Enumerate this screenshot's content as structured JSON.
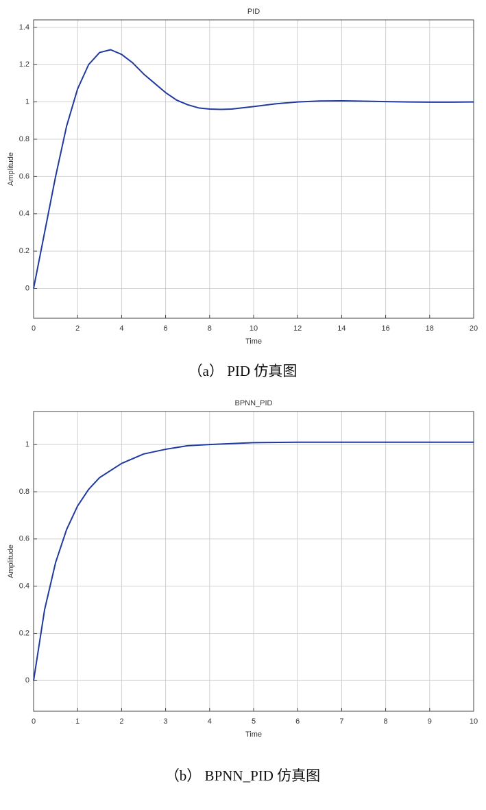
{
  "chart_data": [
    {
      "type": "line",
      "title": "PID",
      "x_label": "Time",
      "y_label": "Amplitude",
      "caption": "（a） PID 仿真图",
      "x": [
        0,
        0.5,
        1,
        1.5,
        2,
        2.5,
        3,
        3.5,
        4,
        4.5,
        5,
        5.5,
        6,
        6.5,
        7,
        7.5,
        8,
        8.5,
        9,
        10,
        11,
        12,
        13,
        14,
        15,
        16,
        17,
        18,
        19,
        20
      ],
      "series": [
        {
          "name": "PID",
          "color": "#1f3a9e",
          "values": [
            0,
            0.3,
            0.6,
            0.87,
            1.07,
            1.2,
            1.265,
            1.28,
            1.255,
            1.21,
            1.15,
            1.1,
            1.05,
            1.01,
            0.985,
            0.968,
            0.962,
            0.96,
            0.962,
            0.975,
            0.99,
            1.0,
            1.005,
            1.006,
            1.004,
            1.002,
            1.0,
            0.999,
            0.999,
            1.0
          ]
        }
      ],
      "xlim": [
        0,
        20
      ],
      "xticks": [
        0,
        2,
        4,
        6,
        8,
        10,
        12,
        14,
        16,
        18,
        20
      ],
      "ylim": [
        -0.16,
        1.44
      ],
      "yticks": [
        0,
        0.2,
        0.4,
        0.6,
        0.8,
        1,
        1.2,
        1.4
      ],
      "grid": true
    },
    {
      "type": "line",
      "title": "BPNN_PID",
      "x_label": "Time",
      "y_label": "Amplitude",
      "caption": "（b） BPNN_PID 仿真图",
      "x": [
        0,
        0.25,
        0.5,
        0.75,
        1,
        1.25,
        1.5,
        2,
        2.5,
        3,
        3.5,
        4,
        5,
        6,
        7,
        8,
        9,
        10
      ],
      "series": [
        {
          "name": "BPNN_PID",
          "color": "#1f3a9e",
          "values": [
            0,
            0.3,
            0.5,
            0.64,
            0.74,
            0.81,
            0.86,
            0.92,
            0.96,
            0.98,
            0.995,
            1.0,
            1.008,
            1.01,
            1.01,
            1.01,
            1.01,
            1.01
          ]
        }
      ],
      "xlim": [
        0,
        10
      ],
      "xticks": [
        0,
        1,
        2,
        3,
        4,
        5,
        6,
        7,
        8,
        9,
        10
      ],
      "ylim": [
        -0.13,
        1.14
      ],
      "yticks": [
        0,
        0.2,
        0.4,
        0.6,
        0.8,
        1
      ],
      "grid": true
    }
  ]
}
